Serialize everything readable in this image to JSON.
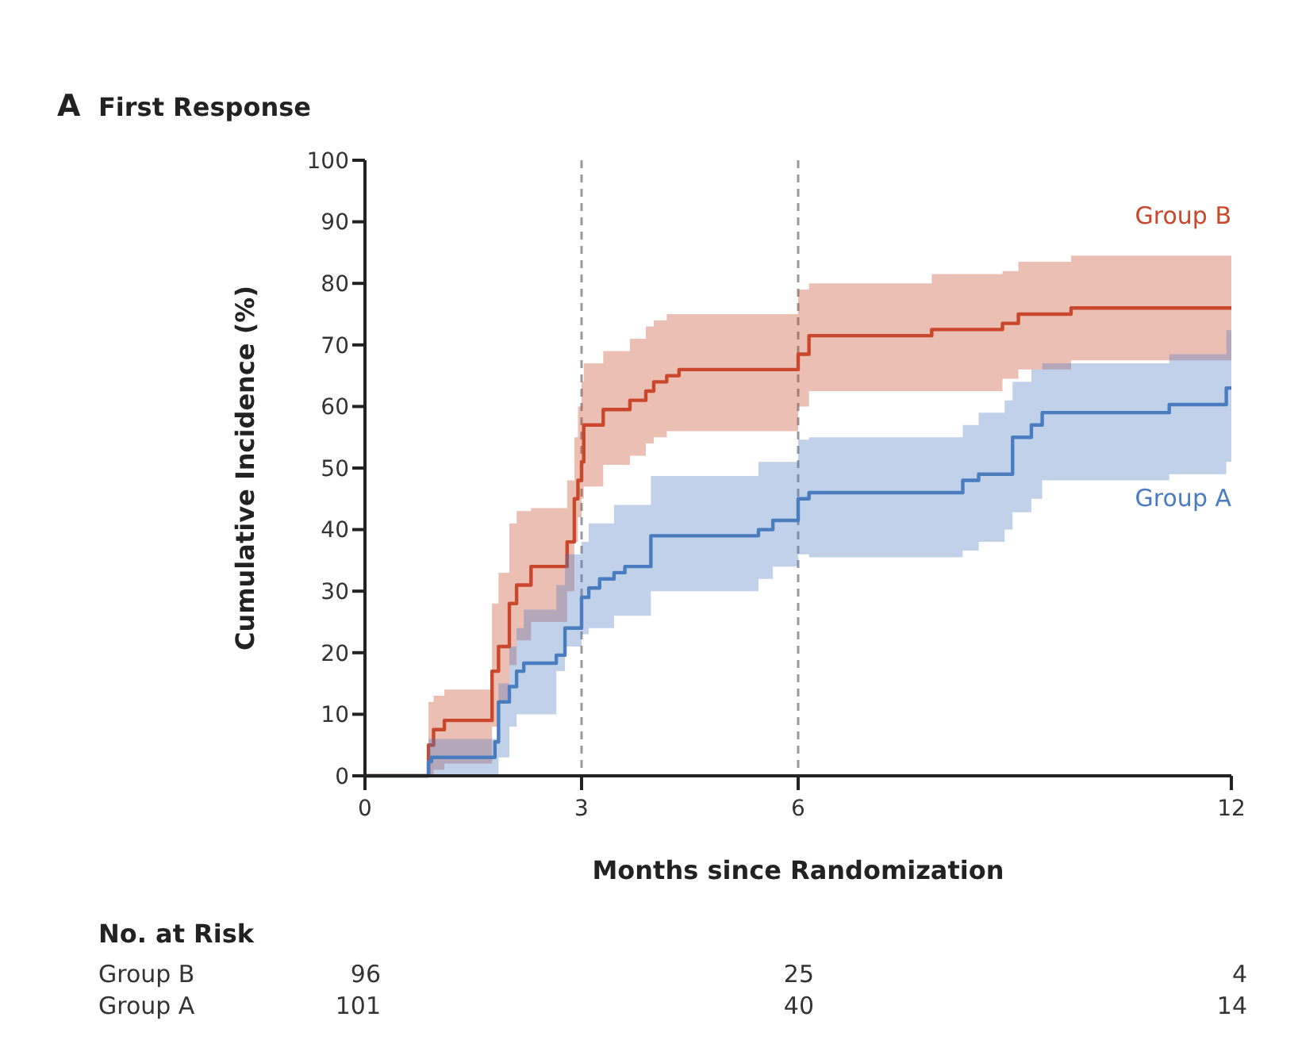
{
  "chart_data": {
    "type": "step",
    "title": "First Response",
    "xlabel": "Months since Randomization",
    "ylabel": "Cumulative Incidence (%)",
    "xlim": [
      0,
      12
    ],
    "xticks": [
      0,
      3,
      6,
      12
    ],
    "ylim": [
      0,
      100
    ],
    "yticks": [
      0,
      10,
      20,
      30,
      40,
      50,
      60,
      70,
      80,
      90,
      100
    ],
    "grid": false,
    "legend": false,
    "marker": "none",
    "line_style": "solid",
    "ref_lines": [
      {
        "axis": "x",
        "value": 3,
        "color": "#9a9a9a",
        "line_style": "dashed"
      },
      {
        "axis": "x",
        "value": 6,
        "color": "#9a9a9a",
        "line_style": "dashed"
      }
    ],
    "series": [
      {
        "name": "Group B",
        "color": "#c9472b",
        "x": [
          0,
          0.88,
          0.95,
          1.1,
          1.76,
          1.85,
          2.0,
          2.1,
          2.3,
          2.8,
          2.9,
          2.95,
          3.0,
          3.03,
          3.3,
          3.67,
          3.89,
          4.0,
          4.18,
          4.35,
          6.0,
          6.15,
          7.85,
          8.83,
          9.05,
          9.78,
          12
        ],
        "values": [
          0,
          5,
          7.5,
          9,
          17,
          21,
          28,
          31,
          34,
          38,
          45,
          48,
          51,
          57,
          59.5,
          61,
          62.5,
          64,
          65,
          66,
          68.5,
          71.5,
          72.5,
          73.5,
          75,
          76,
          76
        ],
        "lower": [
          0,
          0,
          1,
          2,
          8,
          12,
          18,
          22,
          25,
          30,
          38,
          42,
          45,
          47,
          50.5,
          52,
          54,
          55,
          56,
          56,
          60,
          62.5,
          62.5,
          64.5,
          66,
          67.5,
          68.5
        ],
        "upper": [
          0,
          12,
          13,
          14,
          28,
          33,
          41,
          43,
          43.5,
          48,
          55,
          60,
          64,
          67,
          69,
          71,
          73,
          74,
          75,
          75,
          79,
          80,
          81.5,
          82,
          83.5,
          84.5,
          84.5
        ]
      },
      {
        "name": "Group A",
        "color": "#4a7cc0",
        "x": [
          0,
          0.88,
          0.92,
          1.8,
          1.85,
          2.0,
          2.1,
          2.2,
          2.65,
          2.77,
          3.0,
          3.1,
          3.25,
          3.45,
          3.6,
          3.96,
          5.45,
          5.65,
          6.0,
          6.15,
          8.28,
          8.5,
          8.86,
          8.97,
          9.23,
          9.38,
          11.14,
          11.93,
          12
        ],
        "values": [
          0,
          2.3,
          3,
          5.5,
          12,
          14.5,
          17,
          18.3,
          19.6,
          24,
          29,
          30.5,
          32,
          33,
          34,
          39,
          40,
          41.5,
          45,
          46,
          48,
          49,
          49,
          55,
          57,
          59,
          60.3,
          63,
          63
        ],
        "lower": [
          0,
          0,
          0,
          0,
          3,
          8,
          10,
          10,
          17,
          21,
          23,
          24,
          24,
          26,
          26,
          30,
          32,
          34,
          36,
          35.5,
          36.6,
          38,
          40,
          42.8,
          45,
          48,
          49,
          51,
          51
        ],
        "upper": [
          0,
          6,
          6,
          6,
          15,
          21,
          24,
          27,
          31,
          36,
          38,
          41,
          41,
          44,
          44,
          48.7,
          51,
          51,
          54.6,
          55,
          57,
          59,
          61,
          64,
          66,
          67,
          68.5,
          72.4,
          72.4
        ]
      }
    ],
    "annotations": [
      "A",
      "No. at Risk",
      "Group B",
      "96",
      "25",
      "4",
      "Group A",
      "101",
      "40",
      "14"
    ]
  }
}
